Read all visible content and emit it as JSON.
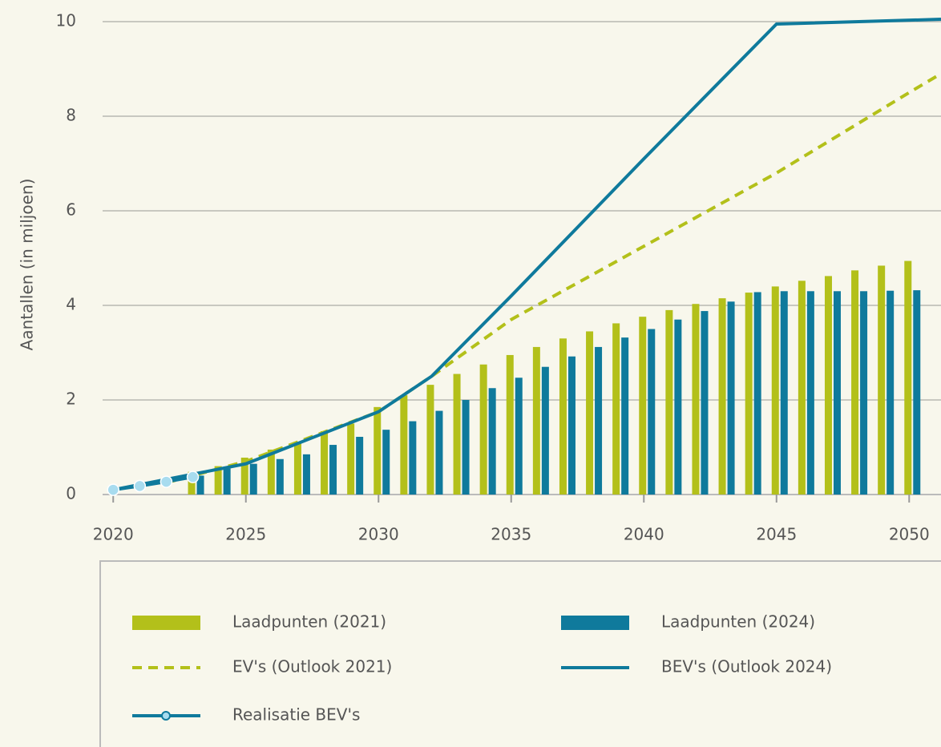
{
  "chart_data": {
    "type": "bar",
    "y_label": "Aantallen (in miljoen)",
    "xlim": [
      2019.6,
      2051.2
    ],
    "xticks": [
      2020,
      2025,
      2030,
      2035,
      2040,
      2045,
      2050
    ],
    "ylim": [
      0,
      10
    ],
    "yticks": [
      0,
      2,
      4,
      6,
      8,
      10
    ],
    "grid": true,
    "series": [
      {
        "name": "Laadpunten (2021)",
        "type": "bar",
        "color": "#b3c01a",
        "x": [
          2023,
          2024,
          2025,
          2026,
          2027,
          2028,
          2029,
          2030,
          2031,
          2032,
          2033,
          2034,
          2035,
          2036,
          2037,
          2038,
          2039,
          2040,
          2041,
          2042,
          2043,
          2044,
          2045,
          2046,
          2047,
          2048,
          2049,
          2050
        ],
        "values": [
          0.48,
          0.6,
          0.78,
          0.95,
          1.1,
          1.34,
          1.5,
          1.85,
          2.1,
          2.32,
          2.55,
          2.75,
          2.95,
          3.12,
          3.3,
          3.45,
          3.62,
          3.76,
          3.9,
          4.03,
          4.15,
          4.27,
          4.4,
          4.52,
          4.62,
          4.74,
          4.84,
          4.94
        ]
      },
      {
        "name": "Laadpunten (2024)",
        "type": "bar",
        "color": "#0f7a9c",
        "x": [
          2023,
          2024,
          2025,
          2026,
          2027,
          2028,
          2029,
          2030,
          2031,
          2032,
          2033,
          2034,
          2035,
          2036,
          2037,
          2038,
          2039,
          2040,
          2041,
          2042,
          2043,
          2044,
          2045,
          2046,
          2047,
          2048,
          2049,
          2050
        ],
        "values": [
          0.4,
          0.55,
          0.65,
          0.75,
          0.85,
          1.05,
          1.22,
          1.37,
          1.55,
          1.77,
          2.0,
          2.25,
          2.47,
          2.7,
          2.92,
          3.12,
          3.32,
          3.5,
          3.7,
          3.88,
          4.08,
          4.28,
          4.3,
          4.3,
          4.3,
          4.3,
          4.31,
          4.32
        ]
      },
      {
        "name": "EV's (Outlook 2021)",
        "type": "line",
        "style": "dashed",
        "color": "#b3c01a",
        "x": [
          2022,
          2025,
          2030,
          2032,
          2035,
          2040,
          2045,
          2050,
          2051.2
        ],
        "values": [
          0.25,
          0.7,
          1.75,
          2.5,
          3.7,
          5.25,
          6.8,
          8.5,
          8.9
        ]
      },
      {
        "name": "BEV's (Outlook 2024)",
        "type": "line",
        "style": "solid",
        "color": "#0f7a9c",
        "x": [
          2020,
          2025,
          2030,
          2032,
          2035,
          2040,
          2045,
          2051.2
        ],
        "values": [
          0.1,
          0.65,
          1.75,
          2.5,
          4.2,
          7.1,
          9.95,
          10.05
        ]
      },
      {
        "name": "Realisatie BEV's",
        "type": "line",
        "style": "solid",
        "markers": true,
        "color": "#0f7a9c",
        "x": [
          2020,
          2021,
          2022,
          2023
        ],
        "values": [
          0.1,
          0.18,
          0.27,
          0.37
        ]
      }
    ]
  }
}
